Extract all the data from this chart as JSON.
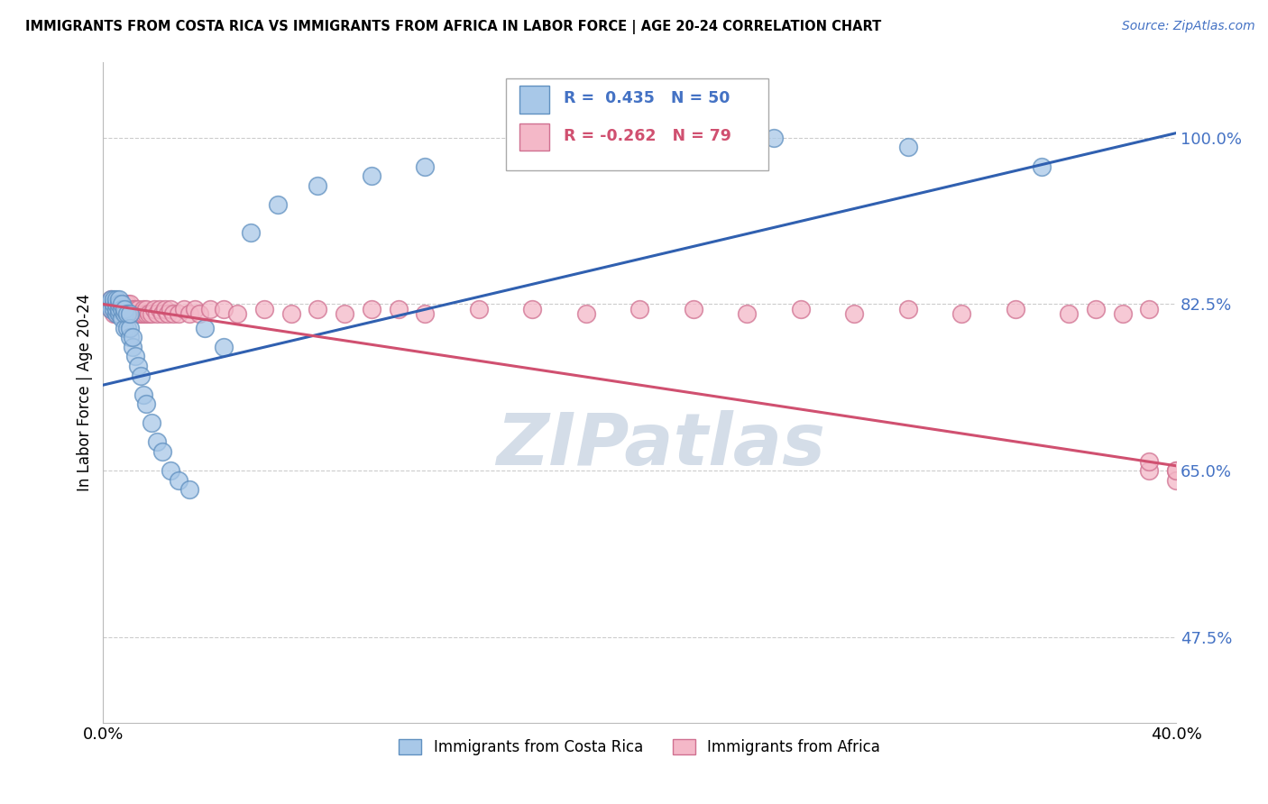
{
  "title": "IMMIGRANTS FROM COSTA RICA VS IMMIGRANTS FROM AFRICA IN LABOR FORCE | AGE 20-24 CORRELATION CHART",
  "source": "Source: ZipAtlas.com",
  "ylabel": "In Labor Force | Age 20-24",
  "y_ticks": [
    0.475,
    0.65,
    0.825,
    1.0
  ],
  "y_tick_labels": [
    "47.5%",
    "65.0%",
    "82.5%",
    "100.0%"
  ],
  "xlim": [
    0.0,
    0.4
  ],
  "ylim": [
    0.385,
    1.08
  ],
  "legend_r1": " R =  0.435",
  "legend_n1": "N = 50",
  "legend_r2": " R = -0.262",
  "legend_n2": "N = 79",
  "legend_label1": "Immigrants from Costa Rica",
  "legend_label2": "Immigrants from Africa",
  "blue_color": "#a8c8e8",
  "pink_color": "#f4b8c8",
  "blue_edge": "#6090c0",
  "pink_edge": "#d07090",
  "line_blue": "#3060b0",
  "line_pink": "#d05070",
  "watermark": "ZIPatlas",
  "watermark_color": "#d4dde8",
  "blue_trend_x0": 0.0,
  "blue_trend_y0": 0.74,
  "blue_trend_x1": 0.4,
  "blue_trend_y1": 1.005,
  "pink_trend_x0": 0.0,
  "pink_trend_y0": 0.825,
  "pink_trend_x1": 0.4,
  "pink_trend_y1": 0.655,
  "costa_rica_x": [
    0.002,
    0.003,
    0.003,
    0.004,
    0.004,
    0.004,
    0.005,
    0.005,
    0.005,
    0.005,
    0.006,
    0.006,
    0.006,
    0.006,
    0.007,
    0.007,
    0.007,
    0.008,
    0.008,
    0.008,
    0.009,
    0.009,
    0.01,
    0.01,
    0.01,
    0.011,
    0.011,
    0.012,
    0.013,
    0.014,
    0.015,
    0.016,
    0.018,
    0.02,
    0.022,
    0.025,
    0.028,
    0.032,
    0.038,
    0.045,
    0.055,
    0.065,
    0.08,
    0.1,
    0.12,
    0.16,
    0.2,
    0.25,
    0.3,
    0.35
  ],
  "costa_rica_y": [
    0.825,
    0.82,
    0.83,
    0.82,
    0.825,
    0.83,
    0.815,
    0.82,
    0.825,
    0.83,
    0.815,
    0.82,
    0.825,
    0.83,
    0.81,
    0.82,
    0.825,
    0.8,
    0.815,
    0.82,
    0.8,
    0.815,
    0.79,
    0.8,
    0.815,
    0.78,
    0.79,
    0.77,
    0.76,
    0.75,
    0.73,
    0.72,
    0.7,
    0.68,
    0.67,
    0.65,
    0.64,
    0.63,
    0.8,
    0.78,
    0.9,
    0.93,
    0.95,
    0.96,
    0.97,
    0.98,
    1.0,
    1.0,
    0.99,
    0.97
  ],
  "africa_x": [
    0.002,
    0.003,
    0.003,
    0.004,
    0.004,
    0.004,
    0.005,
    0.005,
    0.005,
    0.006,
    0.006,
    0.006,
    0.007,
    0.007,
    0.008,
    0.008,
    0.008,
    0.009,
    0.009,
    0.009,
    0.01,
    0.01,
    0.01,
    0.011,
    0.011,
    0.012,
    0.012,
    0.013,
    0.013,
    0.014,
    0.015,
    0.015,
    0.016,
    0.016,
    0.017,
    0.018,
    0.019,
    0.02,
    0.021,
    0.022,
    0.023,
    0.024,
    0.025,
    0.026,
    0.028,
    0.03,
    0.032,
    0.034,
    0.036,
    0.04,
    0.045,
    0.05,
    0.06,
    0.07,
    0.08,
    0.09,
    0.1,
    0.11,
    0.12,
    0.14,
    0.16,
    0.18,
    0.2,
    0.22,
    0.24,
    0.26,
    0.28,
    0.3,
    0.32,
    0.34,
    0.36,
    0.37,
    0.38,
    0.39,
    0.39,
    0.39,
    0.4,
    0.4,
    0.4
  ],
  "africa_y": [
    0.825,
    0.82,
    0.83,
    0.815,
    0.82,
    0.825,
    0.815,
    0.82,
    0.825,
    0.815,
    0.82,
    0.825,
    0.815,
    0.82,
    0.815,
    0.82,
    0.825,
    0.815,
    0.82,
    0.825,
    0.815,
    0.82,
    0.825,
    0.815,
    0.82,
    0.815,
    0.82,
    0.815,
    0.82,
    0.815,
    0.815,
    0.82,
    0.815,
    0.82,
    0.815,
    0.815,
    0.82,
    0.815,
    0.82,
    0.815,
    0.82,
    0.815,
    0.82,
    0.815,
    0.815,
    0.82,
    0.815,
    0.82,
    0.815,
    0.82,
    0.82,
    0.815,
    0.82,
    0.815,
    0.82,
    0.815,
    0.82,
    0.82,
    0.815,
    0.82,
    0.82,
    0.815,
    0.82,
    0.82,
    0.815,
    0.82,
    0.815,
    0.82,
    0.815,
    0.82,
    0.815,
    0.82,
    0.815,
    0.65,
    0.66,
    0.82,
    0.65,
    0.64,
    0.65
  ]
}
